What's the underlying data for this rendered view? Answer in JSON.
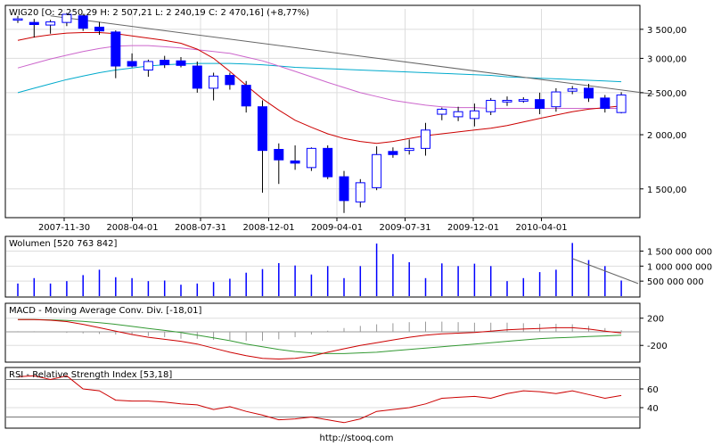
{
  "footer": "http://stooq.com",
  "panels": {
    "price": {
      "title": "WIG20 [O: 2 250,29  H: 2 507,21  L: 2 240,19  C: 2 470,16] (+8,77%)",
      "y_ticks": [
        "3 500,00",
        "3 000,00",
        "2 500,00",
        "2 000,00",
        "1 500,00"
      ],
      "x_ticks": [
        "2007-11-30",
        "2008-04-01",
        "2008-07-31",
        "2008-12-01",
        "2009-04-01",
        "2009-07-31",
        "2009-12-01",
        "2010-04-01"
      ]
    },
    "volume": {
      "title": "Wolumen [520 763 842]",
      "y_ticks": [
        "1 500 000 000",
        "1 000 000 000",
        "500 000 000"
      ]
    },
    "macd": {
      "title": "MACD - Moving Average Conv. Div. [-18,01]",
      "y_ticks": [
        "200",
        "-200"
      ]
    },
    "rsi": {
      "title": "RSI - Relative Strength Index [53,18]",
      "y_ticks": [
        "60",
        "40"
      ]
    }
  },
  "colors": {
    "up_candle": "#ffffff",
    "down_candle": "#0000ff",
    "candle_border": "#0000ff",
    "ma_short": "#cc0000",
    "ma_mid": "#cc66cc",
    "ma_long": "#00aacc",
    "trend_line": "#666666",
    "macd_line": "#cc0000",
    "signal_line": "#339933",
    "rsi_line": "#cc0000",
    "volume_bar": "#0000ff",
    "grid": "#dddddd"
  },
  "chart_data": [
    {
      "type": "candlestick",
      "name": "WIG20",
      "x_tick_labels": [
        "2007-11-30",
        "2008-04-01",
        "2008-07-31",
        "2008-12-01",
        "2009-04-01",
        "2009-07-31",
        "2009-12-01",
        "2010-04-01"
      ],
      "ylim": [
        1300,
        3900
      ],
      "log_scale": true,
      "candles": [
        {
          "o": 3700,
          "h": 3760,
          "l": 3620,
          "c": 3700
        },
        {
          "o": 3630,
          "h": 3700,
          "l": 3350,
          "c": 3590
        },
        {
          "o": 3580,
          "h": 3680,
          "l": 3420,
          "c": 3640
        },
        {
          "o": 3630,
          "h": 3820,
          "l": 3560,
          "c": 3790
        },
        {
          "o": 3760,
          "h": 3800,
          "l": 3470,
          "c": 3520
        },
        {
          "o": 3540,
          "h": 3640,
          "l": 3400,
          "c": 3470
        },
        {
          "o": 3450,
          "h": 3480,
          "l": 2700,
          "c": 2880
        },
        {
          "o": 2950,
          "h": 3080,
          "l": 2860,
          "c": 2880
        },
        {
          "o": 2820,
          "h": 2980,
          "l": 2720,
          "c": 2950
        },
        {
          "o": 2970,
          "h": 3040,
          "l": 2850,
          "c": 2900
        },
        {
          "o": 2960,
          "h": 3020,
          "l": 2860,
          "c": 2890
        },
        {
          "o": 2880,
          "h": 2950,
          "l": 2500,
          "c": 2560
        },
        {
          "o": 2560,
          "h": 2780,
          "l": 2400,
          "c": 2730
        },
        {
          "o": 2740,
          "h": 2780,
          "l": 2540,
          "c": 2610
        },
        {
          "o": 2600,
          "h": 2660,
          "l": 2250,
          "c": 2330
        },
        {
          "o": 2320,
          "h": 2400,
          "l": 1470,
          "c": 1840
        },
        {
          "o": 1850,
          "h": 1910,
          "l": 1540,
          "c": 1750
        },
        {
          "o": 1740,
          "h": 1890,
          "l": 1660,
          "c": 1720
        },
        {
          "o": 1680,
          "h": 1870,
          "l": 1650,
          "c": 1860
        },
        {
          "o": 1860,
          "h": 1890,
          "l": 1580,
          "c": 1600
        },
        {
          "o": 1600,
          "h": 1650,
          "l": 1320,
          "c": 1410
        },
        {
          "o": 1400,
          "h": 1580,
          "l": 1360,
          "c": 1550
        },
        {
          "o": 1510,
          "h": 1880,
          "l": 1490,
          "c": 1800
        },
        {
          "o": 1830,
          "h": 1870,
          "l": 1770,
          "c": 1800
        },
        {
          "o": 1840,
          "h": 1950,
          "l": 1800,
          "c": 1860
        },
        {
          "o": 1860,
          "h": 2130,
          "l": 1790,
          "c": 2050
        },
        {
          "o": 2230,
          "h": 2310,
          "l": 2160,
          "c": 2290
        },
        {
          "o": 2200,
          "h": 2320,
          "l": 2150,
          "c": 2260
        },
        {
          "o": 2180,
          "h": 2360,
          "l": 2090,
          "c": 2270
        },
        {
          "o": 2260,
          "h": 2430,
          "l": 2220,
          "c": 2400
        },
        {
          "o": 2380,
          "h": 2450,
          "l": 2330,
          "c": 2400
        },
        {
          "o": 2390,
          "h": 2440,
          "l": 2370,
          "c": 2410
        },
        {
          "o": 2410,
          "h": 2500,
          "l": 2230,
          "c": 2300
        },
        {
          "o": 2320,
          "h": 2560,
          "l": 2260,
          "c": 2510
        },
        {
          "o": 2520,
          "h": 2590,
          "l": 2480,
          "c": 2550
        },
        {
          "o": 2560,
          "h": 2620,
          "l": 2380,
          "c": 2430
        },
        {
          "o": 2430,
          "h": 2470,
          "l": 2250,
          "c": 2300
        },
        {
          "o": 2250,
          "h": 2507,
          "l": 2240,
          "c": 2470
        }
      ],
      "ma_short": [
        3300,
        3360,
        3400,
        3430,
        3440,
        3440,
        3420,
        3380,
        3340,
        3300,
        3250,
        3150,
        3000,
        2800,
        2600,
        2420,
        2280,
        2160,
        2080,
        2010,
        1960,
        1930,
        1910,
        1930,
        1960,
        1990,
        2010,
        2030,
        2050,
        2070,
        2100,
        2140,
        2180,
        2220,
        2260,
        2290,
        2310,
        2330
      ],
      "ma_mid": [
        2850,
        2920,
        2990,
        3050,
        3110,
        3160,
        3200,
        3210,
        3210,
        3190,
        3170,
        3140,
        3110,
        3080,
        3020,
        2960,
        2880,
        2800,
        2720,
        2640,
        2570,
        2500,
        2450,
        2400,
        2370,
        2340,
        2320,
        2310,
        2310,
        2300,
        2300,
        2300,
        2300,
        2300,
        2300,
        2300,
        2300,
        2300
      ],
      "ma_long": [
        2500,
        2560,
        2620,
        2680,
        2730,
        2780,
        2820,
        2850,
        2880,
        2900,
        2910,
        2920,
        2920,
        2920,
        2910,
        2900,
        2880,
        2860,
        2850,
        2840,
        2830,
        2820,
        2810,
        2800,
        2790,
        2780,
        2770,
        2760,
        2750,
        2740,
        2720,
        2710,
        2700,
        2690,
        2680,
        2670,
        2660,
        2650
      ],
      "trend_line": {
        "start": {
          "index": 2,
          "value": 3760
        },
        "end": {
          "index": 39,
          "value": 2480
        }
      }
    },
    {
      "type": "bar",
      "name": "Wolumen",
      "ylim": [
        0,
        1900000000
      ],
      "values": [
        420000000,
        600000000,
        420000000,
        500000000,
        700000000,
        880000000,
        630000000,
        600000000,
        500000000,
        520000000,
        380000000,
        420000000,
        470000000,
        580000000,
        780000000,
        900000000,
        1100000000,
        1020000000,
        720000000,
        1000000000,
        600000000,
        1000000000,
        1750000000,
        1400000000,
        1130000000,
        600000000,
        1090000000,
        1000000000,
        1080000000,
        1000000000,
        500000000,
        600000000,
        800000000,
        880000000,
        1770000000,
        1200000000,
        1000000000,
        520000000
      ],
      "trend_line": {
        "start": {
          "index": 34,
          "value": 1250000000
        },
        "end": {
          "index": 37,
          "value": 420000000
        }
      }
    },
    {
      "type": "line",
      "name": "MACD",
      "ylim": [
        -420,
        380
      ],
      "macd": [
        180,
        180,
        170,
        150,
        110,
        60,
        10,
        -40,
        -80,
        -110,
        -140,
        -180,
        -240,
        -300,
        -350,
        -390,
        -400,
        -390,
        -360,
        -300,
        -250,
        -200,
        -160,
        -120,
        -80,
        -50,
        -30,
        -20,
        -10,
        10,
        30,
        40,
        50,
        60,
        60,
        40,
        10,
        -18
      ],
      "signal": [
        180,
        180,
        175,
        168,
        155,
        135,
        110,
        80,
        50,
        20,
        -10,
        -50,
        -90,
        -130,
        -180,
        -220,
        -260,
        -290,
        -310,
        -320,
        -320,
        -310,
        -300,
        -280,
        -260,
        -240,
        -220,
        -200,
        -180,
        -160,
        -140,
        -120,
        -100,
        -90,
        -80,
        -70,
        -60,
        -50
      ],
      "histogram": [
        10,
        10,
        5,
        20,
        30,
        40,
        50,
        60,
        80,
        100,
        130,
        130,
        150,
        150,
        170,
        170,
        140,
        100,
        50,
        20,
        70,
        110,
        140,
        160,
        180,
        190,
        190,
        180,
        170,
        170,
        170,
        160,
        150,
        150,
        140,
        110,
        70,
        30
      ],
      "histogram_sign": [
        1,
        1,
        -1,
        -1,
        -1,
        -1,
        -1,
        -1,
        -1,
        -1,
        -1,
        -1,
        -1,
        -1,
        -1,
        -1,
        -1,
        -1,
        -1,
        1,
        1,
        1,
        1,
        1,
        1,
        1,
        1,
        1,
        1,
        1,
        1,
        1,
        1,
        1,
        1,
        1,
        1,
        1
      ]
    },
    {
      "type": "line",
      "name": "RSI",
      "ylim": [
        20,
        80
      ],
      "values": [
        73,
        74,
        70,
        74,
        60,
        58,
        48,
        47,
        47,
        46,
        44,
        43,
        38,
        41,
        36,
        32,
        27,
        28,
        30,
        27,
        24,
        28,
        36,
        38,
        40,
        44,
        50,
        51,
        52,
        50,
        55,
        58,
        57,
        55,
        58,
        54,
        50,
        53
      ],
      "ref_lines": [
        70,
        30
      ]
    }
  ]
}
